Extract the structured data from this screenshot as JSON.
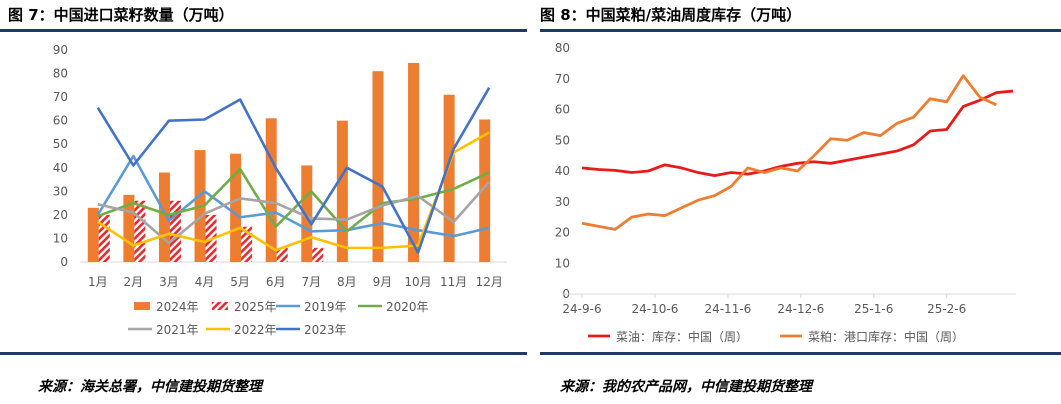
{
  "left": {
    "title": "图 7：中国进口菜籽数量（万吨）",
    "source": "来源：海关总署，中信建投期货整理",
    "chart_data": {
      "type": "bar",
      "title": "图 7：中国进口菜籽数量（万吨）",
      "categories": [
        "1月",
        "2月",
        "3月",
        "4月",
        "5月",
        "6月",
        "7月",
        "8月",
        "9月",
        "10月",
        "11月",
        "12月"
      ],
      "ylim": [
        0,
        90
      ],
      "yticks": [
        0,
        10,
        20,
        30,
        40,
        50,
        60,
        70,
        80,
        90
      ],
      "bar_series": [
        {
          "name": "2024年",
          "color": "#ed7d31",
          "pattern": "solid",
          "values": [
            23,
            28.5,
            38,
            47.5,
            46,
            61,
            41,
            60,
            81,
            84.5,
            71,
            60.5
          ]
        },
        {
          "name": "2025年",
          "color": "#e8292e",
          "pattern": "hatch",
          "values": [
            20,
            26,
            26,
            20,
            15,
            6,
            6,
            null,
            null,
            null,
            null,
            null
          ]
        }
      ],
      "line_series": [
        {
          "name": "2019年",
          "color": "#5b9bd5",
          "values": [
            20,
            45,
            17.5,
            30,
            19,
            21,
            13,
            13.5,
            16.5,
            13.5,
            11,
            14.5
          ]
        },
        {
          "name": "2020年",
          "color": "#70ad47",
          "values": [
            19.5,
            25,
            20,
            24,
            39.5,
            15,
            30,
            13,
            25,
            27,
            31,
            38
          ]
        },
        {
          "name": "2021年",
          "color": "#a5a5a5",
          "values": [
            24.5,
            21,
            8,
            20.5,
            27,
            25,
            18.5,
            18,
            24,
            28,
            17,
            34
          ]
        },
        {
          "name": "2022年",
          "color": "#ffc000",
          "values": [
            17,
            7,
            12,
            8.5,
            14.5,
            5,
            10.5,
            6,
            6,
            7,
            46.5,
            55
          ]
        },
        {
          "name": "2023年",
          "color": "#4472c4",
          "values": [
            65.5,
            41,
            60,
            60.5,
            69,
            40,
            16,
            40,
            32,
            4,
            48,
            74
          ]
        }
      ],
      "legend": [
        "2024年",
        "2025年",
        "2019年",
        "2020年",
        "2021年",
        "2022年",
        "2023年"
      ]
    }
  },
  "right": {
    "title": "图 8：中国菜粕/菜油周度库存（万吨）",
    "source": "来源：我的农产品网，中信建投期货整理",
    "chart_data": {
      "type": "line",
      "title": "图 8：中国菜粕/菜油周度库存（万吨）",
      "ylim": [
        0,
        80
      ],
      "yticks": [
        0,
        10,
        20,
        30,
        40,
        50,
        60,
        70,
        80
      ],
      "xticks": [
        "24-9-6",
        "24-10-6",
        "24-11-6",
        "24-12-6",
        "25-1-6",
        "25-2-6"
      ],
      "series": [
        {
          "name": "菜油：库存：中国（周）",
          "color": "#e81a1a",
          "values": [
            41,
            40.5,
            40.2,
            39.5,
            40,
            42,
            41,
            39.5,
            38.5,
            39.5,
            39,
            40,
            41.5,
            42.5,
            43,
            42.5,
            43.5,
            44.5,
            45.5,
            46.5,
            48.5,
            53,
            53.5,
            61,
            63,
            65.5,
            66
          ]
        },
        {
          "name": "菜粕：港口库存：中国（周）",
          "color": "#ed7d31",
          "values": [
            23,
            22,
            21,
            25,
            26,
            25.5,
            28,
            30.5,
            32,
            35,
            41,
            39.5,
            41,
            40,
            45,
            50.5,
            50,
            52.5,
            51.5,
            55.5,
            57.5,
            63.5,
            62.5,
            71,
            64,
            61.5,
            null
          ]
        }
      ]
    }
  }
}
